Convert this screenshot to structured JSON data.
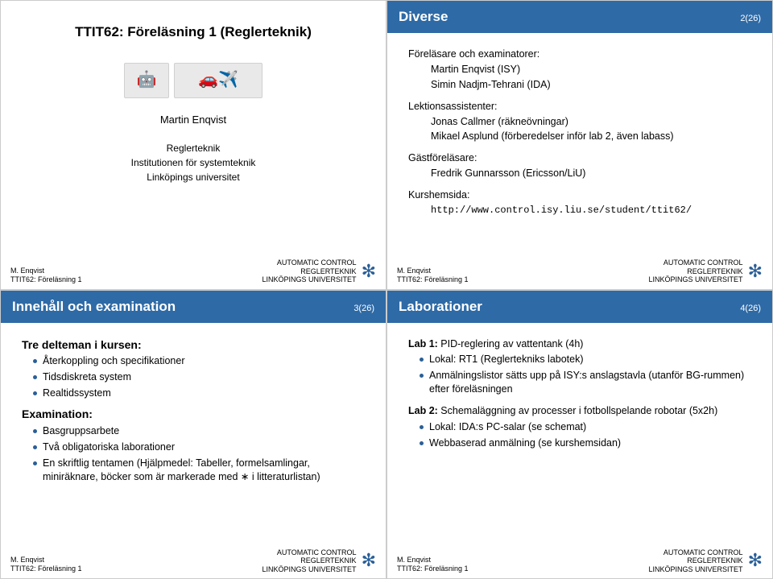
{
  "colors": {
    "titlebar_bg": "#2e6aa6",
    "titlebar_fg": "#ffffff",
    "bullet": "#2a5f97",
    "snowflake": "#2a5f97",
    "body_text": "#000000",
    "thumb_bg": "#e9e9e9"
  },
  "footer": {
    "author": "M. Enqvist",
    "course_line": "TTIT62: Föreläsning 1",
    "dept1": "AUTOMATIC CONTROL",
    "dept2": "REGLERTEKNIK",
    "dept3": "LINKÖPINGS UNIVERSITET",
    "snowflake_glyph": "✻"
  },
  "slide1": {
    "course_title": "TTIT62: Föreläsning 1 (Reglerteknik)",
    "author": "Martin Enqvist",
    "affil1": "Reglerteknik",
    "affil2": "Institutionen för systemteknik",
    "affil3": "Linköpings universitet"
  },
  "slide2": {
    "title": "Diverse",
    "pageno": "2(26)",
    "sec1_head": "Föreläsare och examinatorer:",
    "sec1_l1": "Martin Enqvist (ISY)",
    "sec1_l2": "Simin Nadjm-Tehrani (IDA)",
    "sec2_head": "Lektionsassistenter:",
    "sec2_l1": "Jonas Callmer (räkneövningar)",
    "sec2_l2": "Mikael Asplund (förberedelser inför lab 2, även labass)",
    "sec3_head": "Gästföreläsare:",
    "sec3_l1": "Fredrik Gunnarsson (Ericsson/LiU)",
    "sec4_head": "Kurshemsida:",
    "sec4_l1": "http://www.control.isy.liu.se/student/ttit62/"
  },
  "slide3": {
    "title": "Innehåll och examination",
    "pageno": "3(26)",
    "h1": "Tre delteman i kursen:",
    "b1": "Återkoppling och specifikationer",
    "b2": "Tidsdiskreta system",
    "b3": "Realtidssystem",
    "h2": "Examination:",
    "e1": "Basgruppsarbete",
    "e2": "Två obligatoriska laborationer",
    "e3": "En skriftlig tentamen (Hjälpmedel: Tabeller, formelsamlingar, miniräknare, böcker som är markerade med ∗ i litteraturlistan)"
  },
  "slide4": {
    "title": "Laborationer",
    "pageno": "4(26)",
    "lab1_head": "Lab 1: ",
    "lab1_rest": "PID-reglering av vattentank (4h)",
    "lab1_b1": "Lokal: RT1 (Reglertekniks labotek)",
    "lab1_b2": "Anmälningslistor sätts upp på ISY:s anslagstavla (utanför BG-rummen) efter föreläsningen",
    "lab2_head": "Lab 2: ",
    "lab2_rest": "Schemaläggning av processer i fotbollspelande robotar (5x2h)",
    "lab2_b1": "Lokal: IDA:s PC-salar (se schemat)",
    "lab2_b2": "Webbaserad anmälning (se kurshemsidan)"
  }
}
